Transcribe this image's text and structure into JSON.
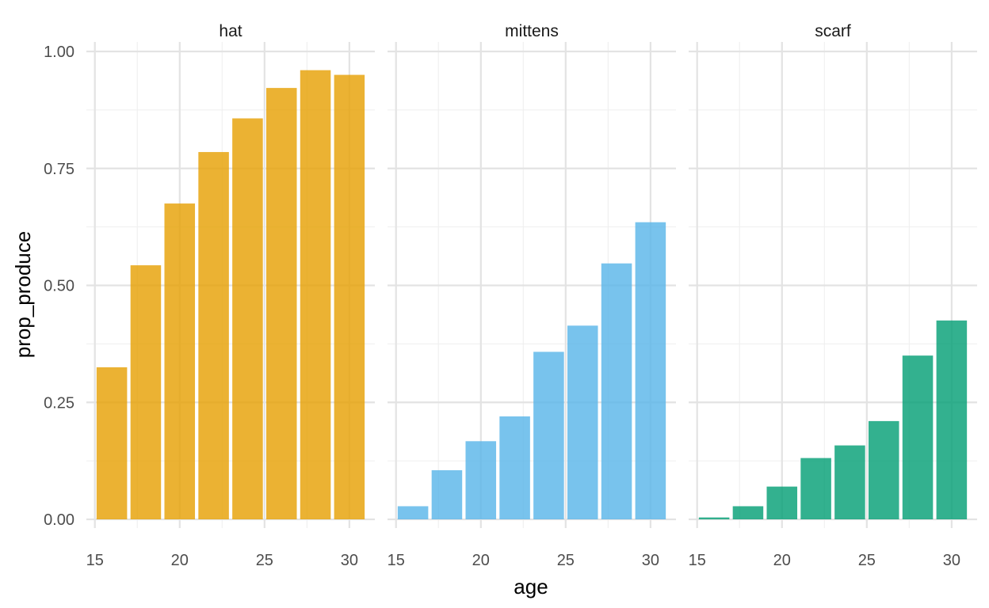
{
  "chart_data": {
    "type": "bar",
    "facet_by": "item",
    "xlabel": "age",
    "ylabel": "prop_produce",
    "xlim": [
      14.5,
      31.5
    ],
    "ylim": [
      0,
      1
    ],
    "x_ticks": [
      15,
      20,
      25,
      30
    ],
    "y_ticks": [
      0,
      0.25,
      0.5,
      0.75,
      1.0
    ],
    "y_tick_labels": [
      "0.00",
      "0.25",
      "0.50",
      "0.75",
      "1.00"
    ],
    "grid": true,
    "legend": "none",
    "bar_width": 1.8,
    "panels": [
      {
        "label": "hat",
        "color": "#E69F00",
        "x": [
          16,
          18,
          20,
          22,
          24,
          26,
          28,
          30
        ],
        "values": [
          0.325,
          0.543,
          0.675,
          0.785,
          0.857,
          0.922,
          0.96,
          0.95
        ]
      },
      {
        "label": "mittens",
        "color": "#56B4E9",
        "x": [
          16,
          18,
          20,
          22,
          24,
          26,
          28,
          30
        ],
        "values": [
          0.028,
          0.105,
          0.167,
          0.22,
          0.358,
          0.414,
          0.547,
          0.635
        ]
      },
      {
        "label": "scarf",
        "color": "#009E73",
        "x": [
          16,
          18,
          20,
          22,
          24,
          26,
          28,
          30
        ],
        "values": [
          0.004,
          0.028,
          0.07,
          0.131,
          0.158,
          0.21,
          0.35,
          0.425
        ]
      }
    ]
  }
}
